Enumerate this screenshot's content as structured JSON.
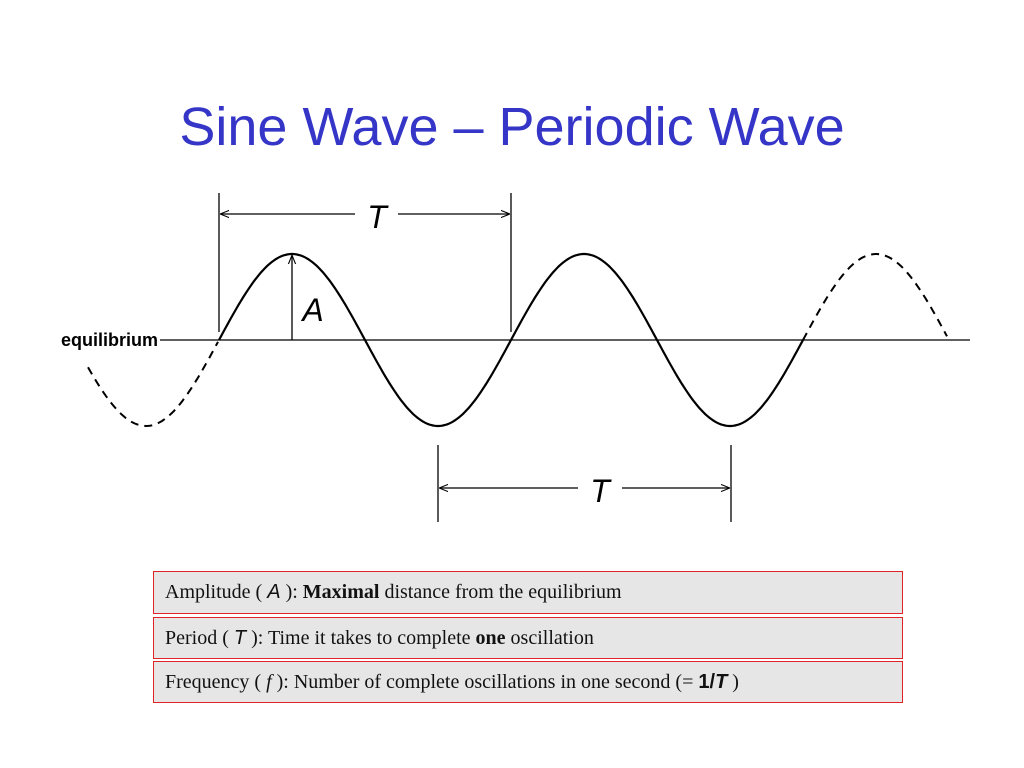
{
  "title": "Sine Wave – Periodic Wave",
  "diagram": {
    "equilibrium_label": "equilibrium",
    "period_symbol": "T",
    "amplitude_symbol": "A"
  },
  "definitions": {
    "amplitude": {
      "prefix": "Amplitude ( ",
      "symbol": "A",
      "after_symbol": " ): ",
      "emphasis": "Maximal",
      "rest": " distance from the equilibrium"
    },
    "period": {
      "prefix": "Period ( ",
      "symbol": "T",
      "after_symbol": " ): Time it takes to complete ",
      "emphasis": "one",
      "rest": " oscillation"
    },
    "frequency": {
      "prefix": "Frequency ( ",
      "symbol": "f",
      "after_symbol": " ): Number of complete oscillations in one second (= ",
      "formula_num": "1/",
      "formula_sym": "T",
      "suffix": " )"
    }
  },
  "colors": {
    "title": "#3535c8",
    "box_border": "#e0232a",
    "box_fill": "#e6e6e6",
    "line": "#000000"
  }
}
